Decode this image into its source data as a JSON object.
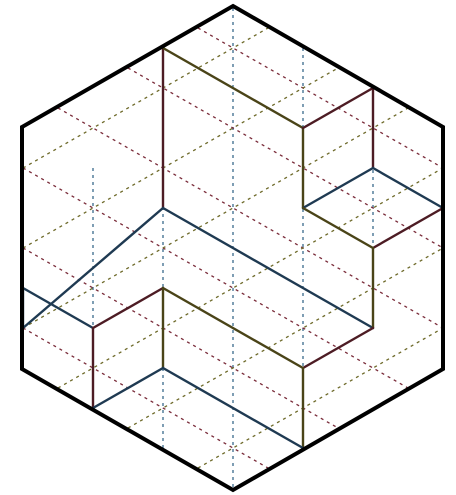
{
  "diagram": {
    "description_colors": {
      "background": "#ffffff",
      "outline": "#000000",
      "grid_blue": "#3a6a8c",
      "grid_red": "#7a2c3a",
      "grid_olive": "#6e6a2a",
      "edge_blue": "#1f3a52",
      "edge_olive": "#4a4418",
      "edge_red": "#4d1c24"
    }
  }
}
